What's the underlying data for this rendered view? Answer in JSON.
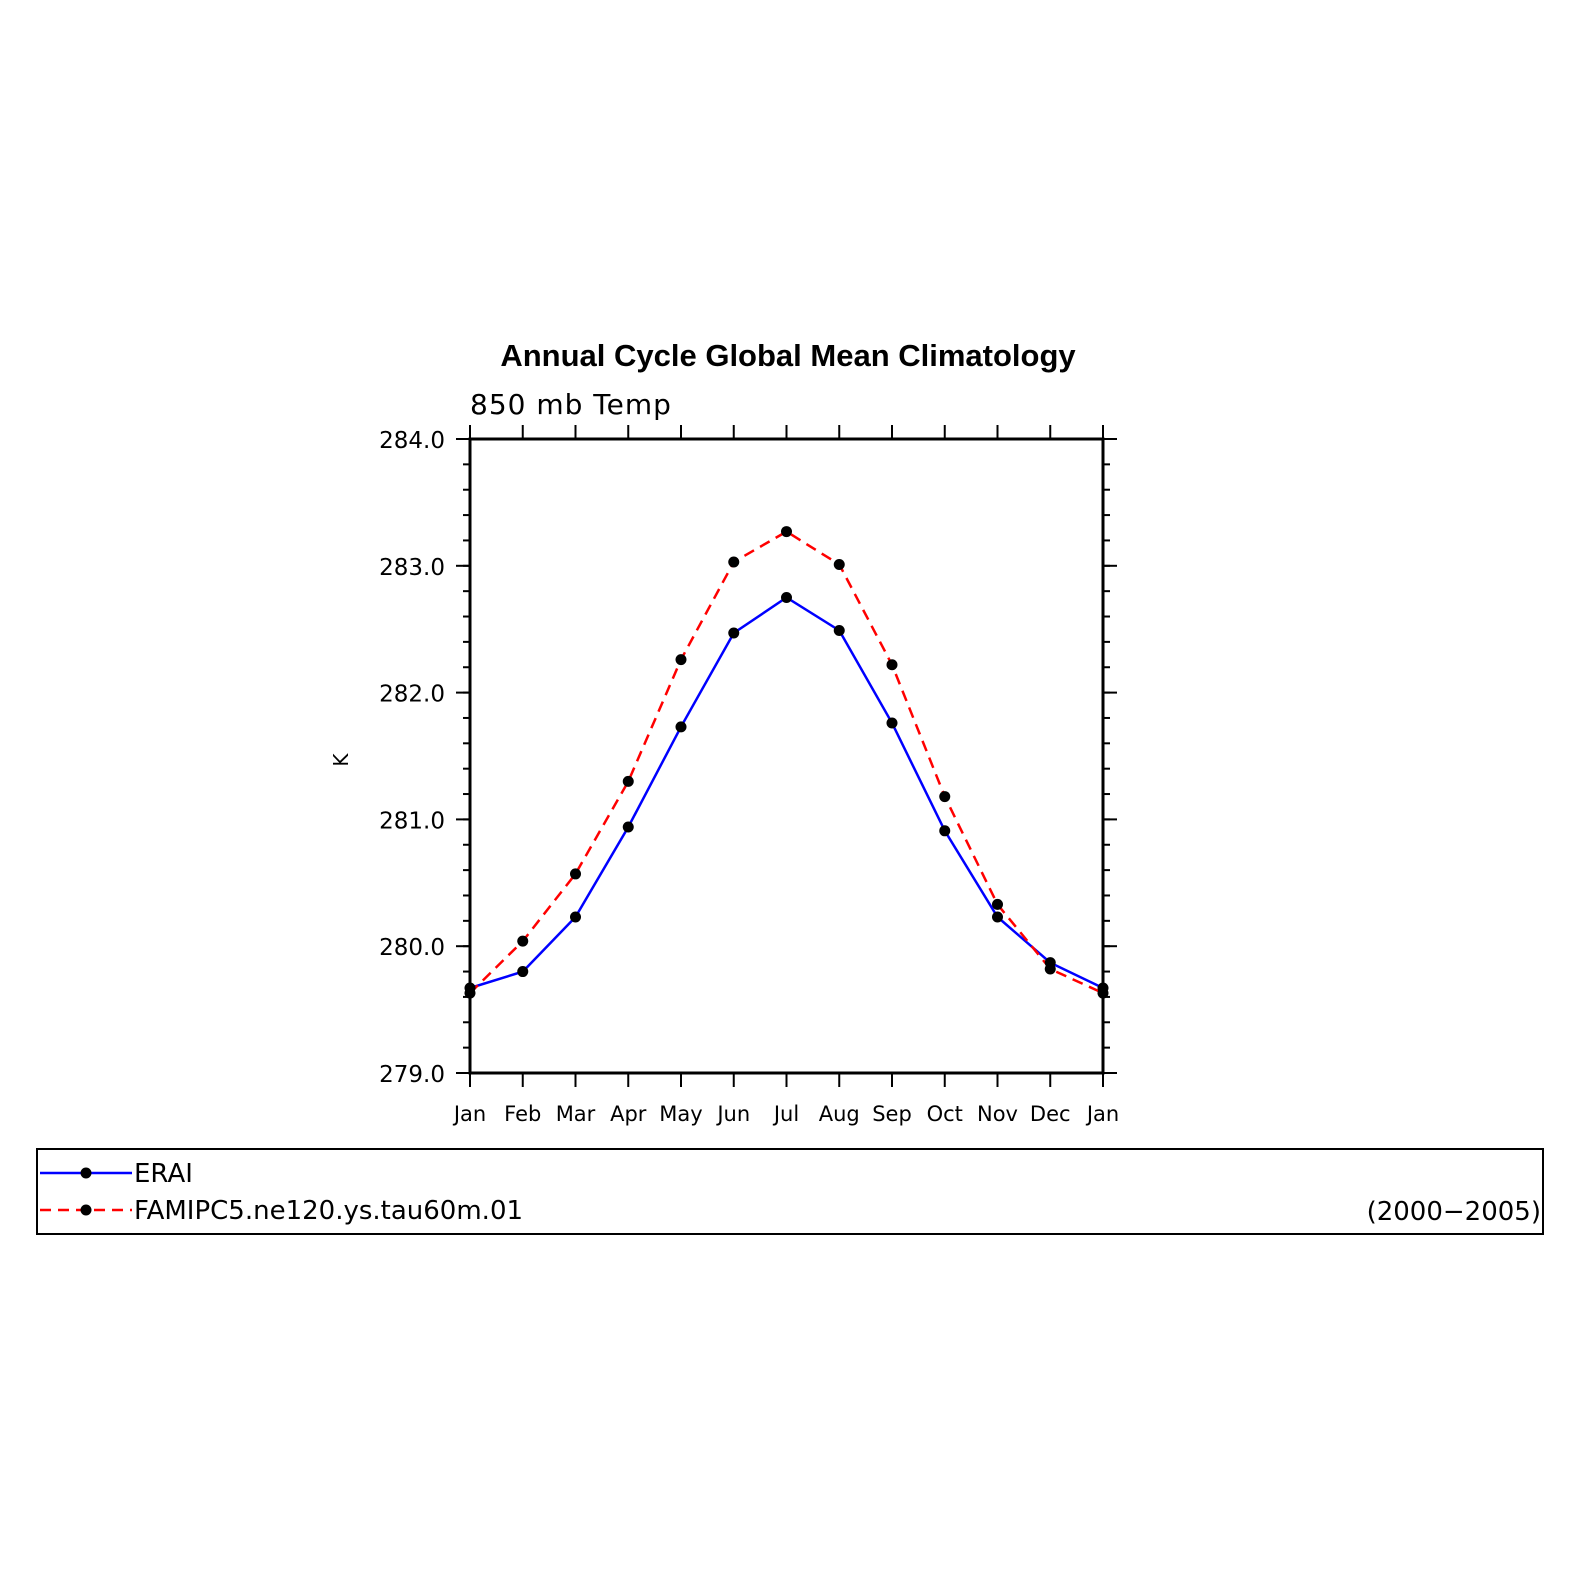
{
  "chart_data": {
    "type": "line",
    "title": "Annual Cycle Global Mean Climatology",
    "subtitle": "850 mb Temp",
    "xlabel": "",
    "ylabel": "K",
    "ylim": [
      279.0,
      284.0
    ],
    "yticks": [
      "279.0",
      "280.0",
      "281.0",
      "282.0",
      "283.0",
      "284.0"
    ],
    "categories": [
      "Jan",
      "Feb",
      "Mar",
      "Apr",
      "May",
      "Jun",
      "Jul",
      "Aug",
      "Sep",
      "Oct",
      "Nov",
      "Dec",
      "Jan"
    ],
    "series": [
      {
        "name": "ERAI",
        "color": "#0000ff",
        "dash": "solid",
        "values": [
          279.67,
          279.8,
          280.23,
          280.94,
          281.73,
          282.47,
          282.75,
          282.49,
          281.76,
          280.91,
          280.23,
          279.87,
          279.67
        ]
      },
      {
        "name": "FAMIPC5.ne120.ys.tau60m.01",
        "color": "#ff0000",
        "dash": "dashed",
        "values": [
          279.63,
          280.04,
          280.57,
          281.3,
          282.26,
          283.03,
          283.27,
          283.01,
          282.22,
          281.18,
          280.33,
          279.82,
          279.63
        ]
      }
    ],
    "grid": false,
    "legend_position": "bottom",
    "period_label": "(2000−2005)"
  }
}
